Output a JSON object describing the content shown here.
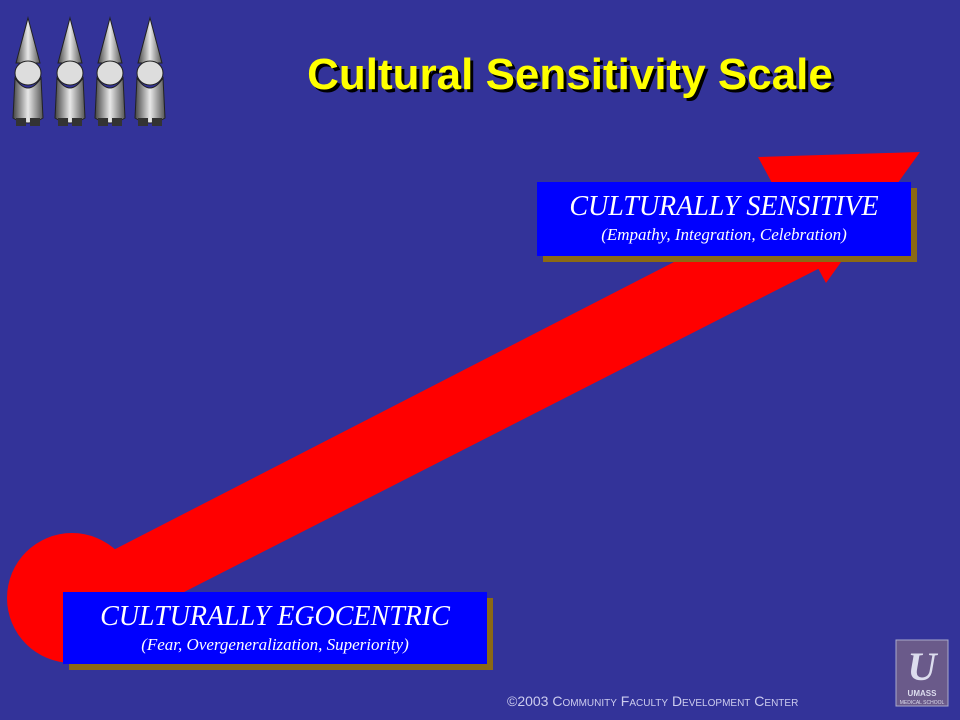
{
  "slide": {
    "title": "Cultural Sensitivity Scale",
    "background_color": "#333399",
    "title_color": "#FFFF00",
    "arrow_color": "#FF0000",
    "label_box_color": "#0000FF",
    "label_shadow_color": "#8B6914"
  },
  "labels": {
    "sensitive": {
      "main": "CULTURALLY SENSITIVE",
      "sub": "(Empathy, Integration, Celebration)"
    },
    "egocentric": {
      "main": "CULTURALLY EGOCENTRIC",
      "sub": "(Fear, Overgeneralization, Superiority)"
    }
  },
  "decorations": {
    "gnomes_icon": "four-gnomes-icon",
    "logo_icon": "umass-medical-school-logo"
  },
  "footer": {
    "text": "©2003 Community Faculty Development Center"
  }
}
